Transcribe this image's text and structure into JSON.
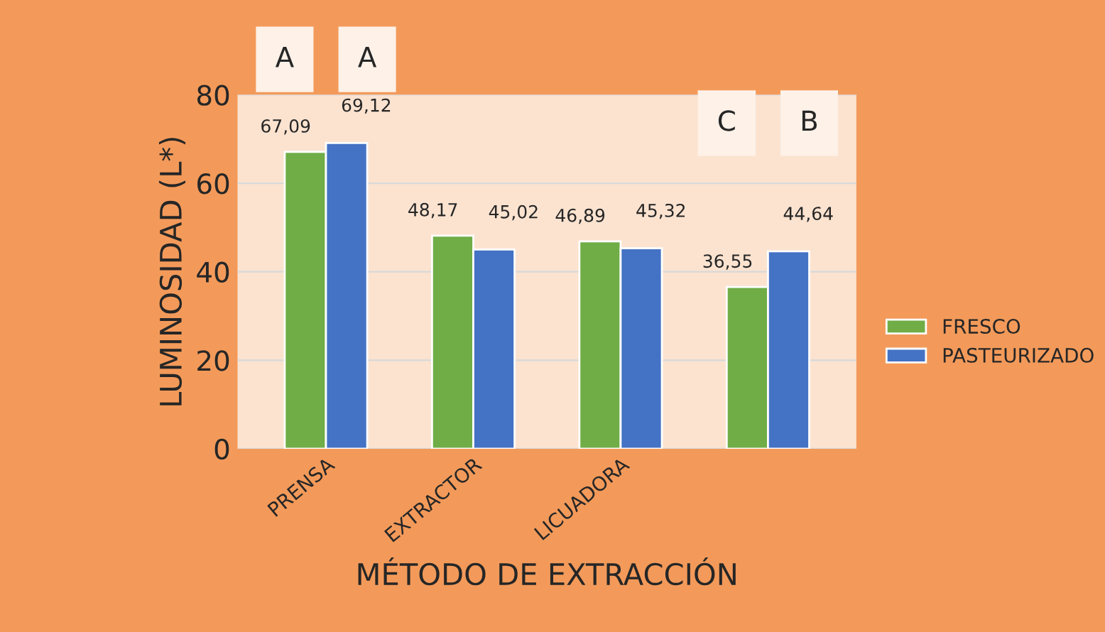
{
  "chart_data": {
    "type": "bar",
    "xlabel": "MÉTODO DE EXTRACCIÓN",
    "ylabel": "LUMINOSIDAD (L*)",
    "categories": [
      "PRENSA",
      "EXTRACTOR",
      "LICUADORA",
      null
    ],
    "series": [
      {
        "name": "FRESCO",
        "color": "#70ad47",
        "values": [
          67.09,
          48.17,
          46.89,
          36.55
        ],
        "value_labels": [
          "67,09",
          "48,17",
          "46,89",
          "36,55"
        ]
      },
      {
        "name": "PASTEURIZADO",
        "color": "#4472c4",
        "values": [
          69.12,
          45.02,
          45.32,
          44.64
        ],
        "value_labels": [
          "69,12",
          "45,02",
          "45,32",
          "44,64"
        ]
      }
    ],
    "ylim": [
      0,
      80
    ],
    "yticks": [
      0,
      20,
      40,
      60,
      80
    ],
    "grid": "y",
    "legend": "right",
    "annotations": [
      "A",
      "A",
      "C",
      "B"
    ]
  }
}
